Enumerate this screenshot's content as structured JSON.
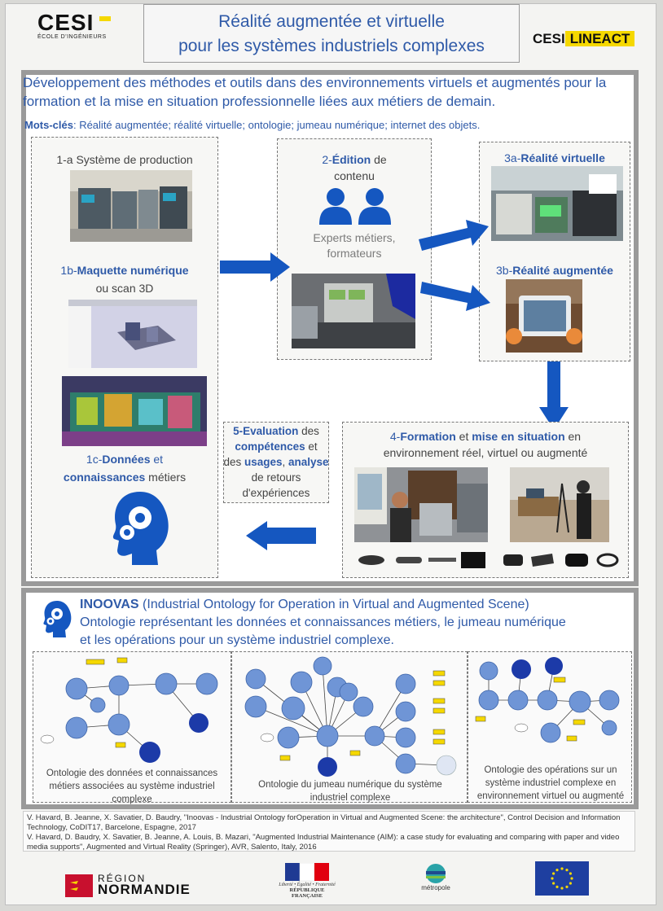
{
  "header": {
    "logo_left": "CESI",
    "logo_left_sub": "ÉCOLE D'INGÉNIEURS",
    "title_line1": "Réalité augmentée et virtuelle",
    "title_line2": "pour les systèmes industriels complexes",
    "logo_right_a": "CESI",
    "logo_right_b": "LINEACT"
  },
  "intro": {
    "text": "Développement des méthodes et outils dans des environnements virtuels et augmentés pour la formation et la mise en situation professionnelle liées aux métiers de demain.",
    "keywords_label": "Mots-clés",
    "keywords": ": Réalité augmentée; réalité virtuelle; ontologie; jumeau numérique; internet des objets."
  },
  "col1": {
    "a_label": "1-a Système de production",
    "b_prefix": "1b-",
    "b_bold": "Maquette numérique",
    "b_suffix": "ou scan 3D",
    "c_prefix": "1c-",
    "c_bold1": "Données",
    "c_mid": " et",
    "c_bold2": "connaissances",
    "c_suffix": " métiers"
  },
  "col2": {
    "prefix": "2-",
    "bold": "Édition",
    "suffix1": " de",
    "suffix2": "contenu",
    "experts_line1": "Experts métiers,",
    "experts_line2": "formateurs"
  },
  "col3": {
    "a_prefix": "3a-",
    "a_bold": "Réalité virtuelle",
    "b_prefix": "3b-",
    "b_bold": "Réalité augmentée"
  },
  "step4": {
    "prefix": "4-",
    "bold1": "Formation",
    "mid": " et ",
    "bold2": "mise en situation",
    "suffix": " en",
    "line2": "environnement réel, virtuel ou augmenté"
  },
  "step5": {
    "l1_bold": "5-Evaluation",
    "l1": " des",
    "l2_bold": "compétences",
    "l2": " et",
    "l3a": "des ",
    "l3_bold1": "usages",
    "l3b": ", ",
    "l3_bold2": "analyse",
    "l4": "de retours",
    "l5": "d'expériences"
  },
  "inoovas": {
    "name": "INOOVAS",
    "line1": " (Industrial Ontology for Operation in Virtual and Augmented Scene)",
    "line2": "Ontologie représentant les données et connaissances métiers, le jumeau numérique",
    "line3": "et les opérations pour un système industriel complexe."
  },
  "ontologies": {
    "cap1_l1": "Ontologie des données et connaissances",
    "cap1_l2": "métiers associées au système industriel",
    "cap1_l3": "complexe",
    "cap2_l1": "Ontologie du jumeau numérique du système",
    "cap2_l2": "industriel complexe",
    "cap3_l1": "Ontologie des opérations sur un",
    "cap3_l2": "système industriel complexe en",
    "cap3_l3": "environnement virtuel ou augmenté"
  },
  "references": {
    "r1": "V. Havard, B. Jeanne, X. Savatier, D. Baudry, \"Inoovas - Industrial Ontology forOperation in Virtual and Augmented Scene: the architecture\", Control Decision and Information",
    "r2": "Technology, CoDIT17, Barcelone, Espagne, 2017",
    "r3": "V. Havard, D. Baudry, X. Savatier, B. Jeanne, A. Louis, B. Mazari, \"Augmented Industrial Maintenance (AIM): a case study for evaluating and comparing with paper and video",
    "r4": "media supports\", Augmented and Virtual Reality (Springer), AVR, Salento, Italy, 2016"
  },
  "footer": {
    "region_a": "RÉGION",
    "region_b": "NORMANDIE",
    "republique": "RÉPUBLIQUE FRANÇAISE",
    "devise": "Liberté • Égalité • Fraternité",
    "metropole": "métropole"
  },
  "colors": {
    "title_blue": "#2f5aa8",
    "arrow_blue": "#1557c0",
    "node_blue": "#6f95d6",
    "panel_grey": "#9a9a9a"
  }
}
